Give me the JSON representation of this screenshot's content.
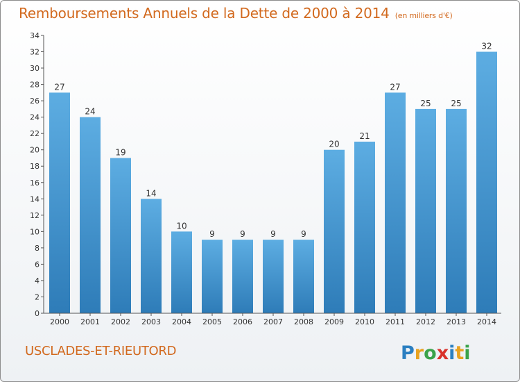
{
  "title": "Remboursements Annuels de la Dette de 2000 à 2014",
  "unit": "(en milliers d'€)",
  "commune": "USCLADES-ET-RIEUTORD",
  "logo_text": "Proxiti",
  "colors": {
    "bar_light": "#5dade2",
    "bar_dark": "#2e7cb8",
    "title": "#d2691e"
  },
  "chart_data": {
    "type": "bar",
    "categories": [
      "2000",
      "2001",
      "2002",
      "2003",
      "2004",
      "2005",
      "2006",
      "2007",
      "2008",
      "2009",
      "2010",
      "2011",
      "2012",
      "2013",
      "2014"
    ],
    "values": [
      27,
      24,
      19,
      14,
      10,
      9,
      9,
      9,
      9,
      20,
      21,
      27,
      25,
      25,
      32
    ],
    "ylim": [
      0,
      34
    ],
    "yticks": [
      0,
      2,
      4,
      6,
      8,
      10,
      12,
      14,
      16,
      18,
      20,
      22,
      24,
      26,
      28,
      30,
      32,
      34
    ],
    "grid": false,
    "title": "Remboursements Annuels de la Dette de 2000 à 2014",
    "xlabel": "",
    "ylabel": ""
  }
}
